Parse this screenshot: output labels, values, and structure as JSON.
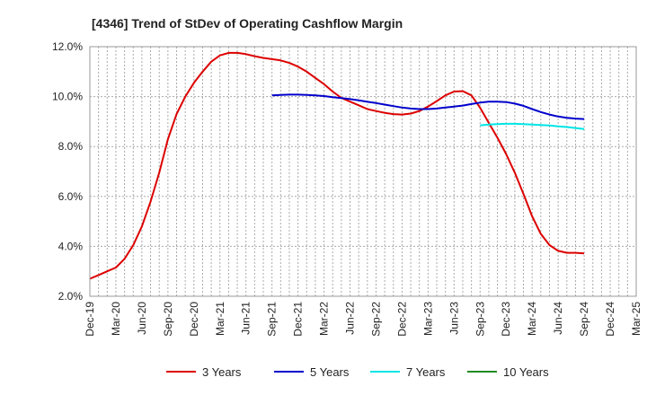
{
  "chart_data": {
    "type": "line",
    "title": "[4346]  Trend of StDev of Operating Cashflow Margin",
    "xlabel": "",
    "ylabel": "",
    "x_tick_labels": [
      "Dec-19",
      "Mar-20",
      "Jun-20",
      "Sep-20",
      "Dec-20",
      "Mar-21",
      "Jun-21",
      "Sep-21",
      "Dec-21",
      "Mar-22",
      "Jun-22",
      "Sep-22",
      "Dec-22",
      "Mar-23",
      "Jun-23",
      "Sep-23",
      "Dec-23",
      "Mar-24",
      "Jun-24",
      "Sep-24",
      "Dec-24",
      "Mar-25"
    ],
    "y_tick_labels": [
      "2.0%",
      "4.0%",
      "6.0%",
      "8.0%",
      "10.0%",
      "12.0%"
    ],
    "ylim": [
      2.0,
      12.0
    ],
    "grid": true,
    "legend_position": "bottom",
    "series": [
      {
        "name": "3 Years",
        "color": "#dd0000",
        "x": [
          "2019-12",
          "2020-01",
          "2020-02",
          "2020-03",
          "2020-04",
          "2020-05",
          "2020-06",
          "2020-07",
          "2020-08",
          "2020-09",
          "2020-10",
          "2020-11",
          "2020-12",
          "2021-01",
          "2021-02",
          "2021-03",
          "2021-04",
          "2021-05",
          "2021-06",
          "2021-07",
          "2021-08",
          "2021-09",
          "2021-10",
          "2021-11",
          "2021-12",
          "2022-01",
          "2022-02",
          "2022-03",
          "2022-04",
          "2022-05",
          "2022-06",
          "2022-07",
          "2022-08",
          "2022-09",
          "2022-10",
          "2022-11",
          "2022-12",
          "2023-01",
          "2023-02",
          "2023-03",
          "2023-04",
          "2023-05",
          "2023-06",
          "2023-07",
          "2023-08",
          "2023-09",
          "2023-10",
          "2023-11",
          "2023-12",
          "2024-01",
          "2024-02",
          "2024-03",
          "2024-04",
          "2024-05",
          "2024-06",
          "2024-07",
          "2024-08",
          "2024-09"
        ],
        "values": [
          2.7,
          2.85,
          3.0,
          3.15,
          3.5,
          4.05,
          4.8,
          5.8,
          6.95,
          8.3,
          9.3,
          10.0,
          10.55,
          11.0,
          11.4,
          11.65,
          11.75,
          11.75,
          11.7,
          11.62,
          11.55,
          11.5,
          11.45,
          11.35,
          11.2,
          11.0,
          10.75,
          10.5,
          10.2,
          9.95,
          9.8,
          9.65,
          9.5,
          9.42,
          9.35,
          9.3,
          9.28,
          9.32,
          9.42,
          9.6,
          9.82,
          10.05,
          10.2,
          10.22,
          10.05,
          9.55,
          8.95,
          8.35,
          7.7,
          6.95,
          6.1,
          5.2,
          4.5,
          4.05,
          3.82,
          3.74,
          3.74,
          3.72
        ]
      },
      {
        "name": "5 Years",
        "color": "#0000cc",
        "x": [
          "2021-09",
          "2021-10",
          "2021-11",
          "2021-12",
          "2022-01",
          "2022-02",
          "2022-03",
          "2022-04",
          "2022-05",
          "2022-06",
          "2022-07",
          "2022-08",
          "2022-09",
          "2022-10",
          "2022-11",
          "2022-12",
          "2023-01",
          "2023-02",
          "2023-03",
          "2023-04",
          "2023-05",
          "2023-06",
          "2023-07",
          "2023-08",
          "2023-09",
          "2023-10",
          "2023-11",
          "2023-12",
          "2024-01",
          "2024-02",
          "2024-03",
          "2024-04",
          "2024-05",
          "2024-06",
          "2024-07",
          "2024-08",
          "2024-09"
        ],
        "values": [
          10.05,
          10.07,
          10.08,
          10.08,
          10.07,
          10.05,
          10.02,
          9.98,
          9.94,
          9.9,
          9.85,
          9.79,
          9.74,
          9.68,
          9.62,
          9.56,
          9.52,
          9.5,
          9.5,
          9.52,
          9.56,
          9.6,
          9.64,
          9.7,
          9.76,
          9.8,
          9.8,
          9.78,
          9.72,
          9.63,
          9.5,
          9.38,
          9.28,
          9.2,
          9.15,
          9.12,
          9.1
        ]
      },
      {
        "name": "7 Years",
        "color": "#00e5e5",
        "x": [
          "2023-09",
          "2023-10",
          "2023-11",
          "2023-12",
          "2024-01",
          "2024-02",
          "2024-03",
          "2024-04",
          "2024-05",
          "2024-06",
          "2024-07",
          "2024-08",
          "2024-09"
        ],
        "values": [
          8.85,
          8.88,
          8.9,
          8.91,
          8.91,
          8.9,
          8.88,
          8.86,
          8.84,
          8.81,
          8.78,
          8.74,
          8.7
        ]
      },
      {
        "name": "10 Years",
        "color": "#228b22",
        "x": [],
        "values": []
      }
    ]
  }
}
